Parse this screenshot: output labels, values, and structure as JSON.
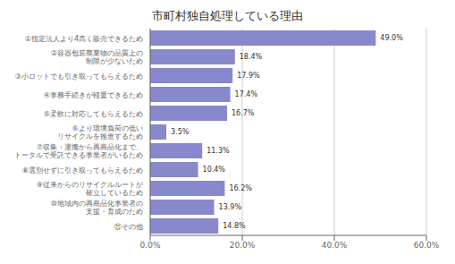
{
  "chart_data": {
    "type": "bar",
    "orientation": "horizontal",
    "title": "市町村独自処理している理由",
    "categories": [
      "①指定法人より4高く販売できるため",
      "②容器包装廃棄物の品質上の\n制限が少ないため",
      "③小ロットでも引き取ってもらえるため",
      "④事務手続きが軽重できるため",
      "⑤柔軟に対応してもらえるため",
      "⑥より環境負荷の低い\nリサイクルを推進するため",
      "⑦収集・運搬から再商品化まで、\nトータルで受託できる事業者がいるため",
      "⑧選別せずに引き取ってもらえるため",
      "⑨従来からのリサイクルルートが\n確立しているため",
      "⑩地域内の再商品化事業者の\n支援・育成のため",
      "⑪その他"
    ],
    "values": [
      49.0,
      18.4,
      17.9,
      17.4,
      16.7,
      3.5,
      11.3,
      10.4,
      16.2,
      13.9,
      14.8
    ],
    "value_labels": [
      "49.0%",
      "18.4%",
      "17.9%",
      "17.4%",
      "16.7%",
      "3.5%",
      "11.3%",
      "10.4%",
      "16.2%",
      "13.9%",
      "14.8%"
    ],
    "data_labels": true,
    "color": "#8888cc",
    "xlim": [
      0,
      60
    ],
    "xticks": [
      {
        "value": 0,
        "label": "0.0%"
      },
      {
        "value": 20,
        "label": "20.0%"
      },
      {
        "value": 40,
        "label": "40.0%"
      },
      {
        "value": 60,
        "label": "60.0%"
      }
    ],
    "grid": true
  }
}
